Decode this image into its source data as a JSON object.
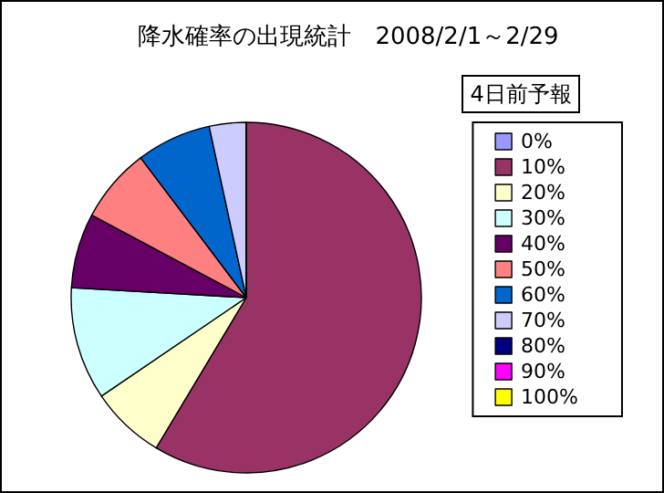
{
  "chart_data": {
    "type": "pie",
    "title": "降水確率の出現統計　2008/2/1～2/29",
    "legend_title": "4日前予報",
    "legend": "right",
    "categories": [
      "0%",
      "10%",
      "20%",
      "30%",
      "40%",
      "50%",
      "60%",
      "70%",
      "80%",
      "90%",
      "100%"
    ],
    "values": [
      0,
      58.6,
      6.9,
      10.4,
      6.9,
      6.9,
      6.9,
      3.4,
      0,
      0,
      0
    ],
    "colors": [
      "#9999ff",
      "#993366",
      "#ffffcc",
      "#ccffff",
      "#660066",
      "#ff8080",
      "#0066cc",
      "#ccccff",
      "#000080",
      "#ff00ff",
      "#ffff00"
    ]
  }
}
